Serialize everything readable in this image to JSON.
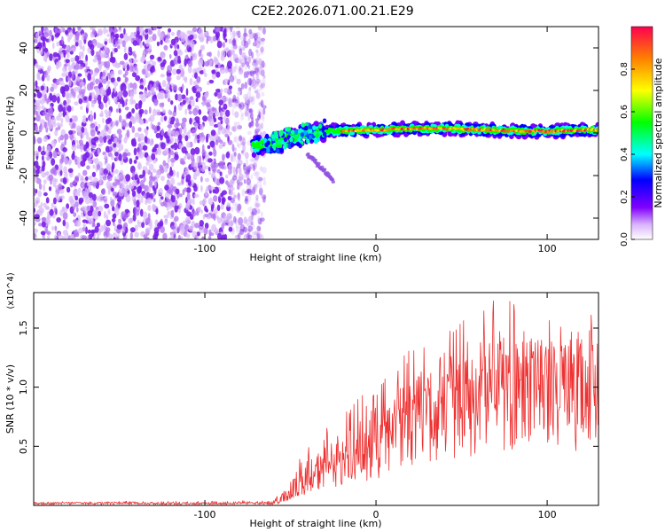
{
  "title": "C2E2.2026.071.00.21.E29",
  "chart_data": [
    {
      "type": "heatmap",
      "xlabel": "Height of straight line (km)",
      "ylabel": "Frequency (Hz)",
      "xlim": [
        -200,
        130
      ],
      "ylim": [
        -50,
        50
      ],
      "xticks": [
        -100,
        0,
        100
      ],
      "yticks": [
        -40,
        -20,
        0,
        20,
        40
      ],
      "colorbar": {
        "label": "Normalized spectral amplitude",
        "range": [
          0,
          1
        ],
        "ticks": [
          "0.0",
          "0.2",
          "0.4",
          "0.6",
          "0.8"
        ]
      },
      "regions": [
        {
          "name": "noise",
          "x_range": [
            -200,
            -75
          ],
          "y_range": [
            -50,
            50
          ],
          "amplitude": 0.1
        },
        {
          "name": "onset-track",
          "x_range": [
            -70,
            -50
          ],
          "y_range": [
            -10,
            -3
          ],
          "amplitude": 0.35
        },
        {
          "name": "branch",
          "x_range": [
            -40,
            -25
          ],
          "y_range": [
            -22,
            -10
          ],
          "amplitude": 0.15
        },
        {
          "name": "main-track",
          "x_range": [
            -50,
            130
          ],
          "y_range": [
            -2,
            5
          ],
          "amplitude": 0.85
        }
      ]
    },
    {
      "type": "line",
      "xlabel": "Height of straight line (km)",
      "ylabel": "SNR (10 * v/v)",
      "yscale_note": "(x10^4)",
      "xlim": [
        -200,
        130
      ],
      "ylim": [
        0,
        1.8
      ],
      "xticks": [
        -100,
        0,
        100
      ],
      "yticks": [
        0.5,
        1.0,
        1.5
      ],
      "series": [
        {
          "name": "SNR",
          "color": "#ee3030",
          "envelope_x": [
            -200,
            -60,
            -50,
            -40,
            -20,
            0,
            20,
            40,
            60,
            80,
            100,
            130
          ],
          "envelope_mean": [
            0.02,
            0.02,
            0.1,
            0.2,
            0.35,
            0.55,
            0.8,
            0.95,
            1.05,
            1.1,
            1.1,
            1.15
          ],
          "envelope_peak": [
            0.03,
            0.05,
            0.3,
            0.5,
            0.8,
            1.05,
            1.35,
            1.55,
            1.7,
            1.78,
            1.6,
            1.62
          ]
        }
      ]
    }
  ]
}
